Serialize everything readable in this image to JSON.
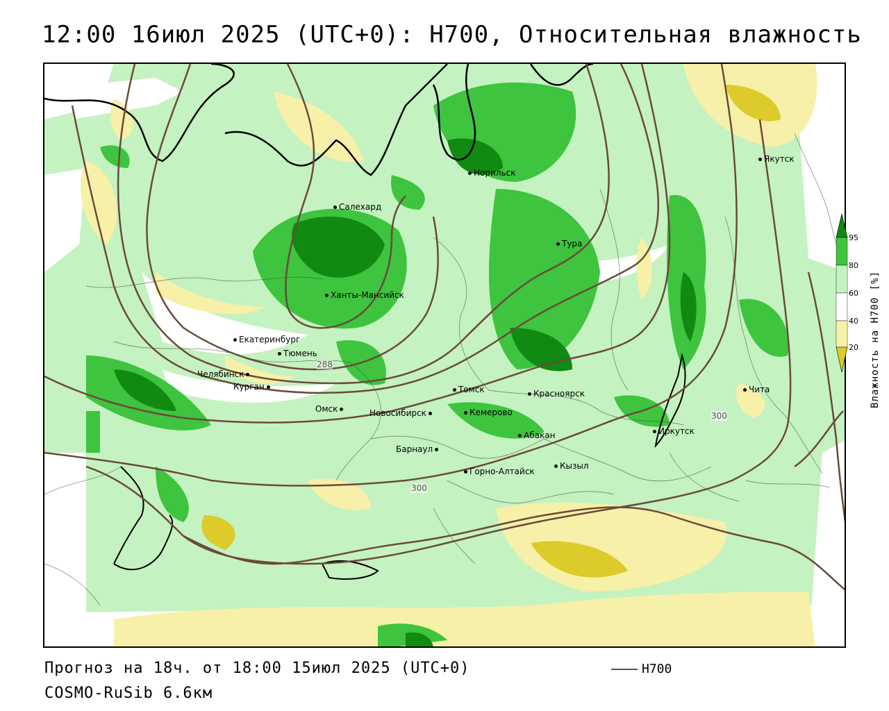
{
  "title": "12:00 16июл 2025 (UTC+0): H700, Относительная влажность",
  "footer": {
    "forecast": "Прогноз на 18ч. от 18:00 15июл 2025 (UTC+0)",
    "model": "COSMO-RuSib 6.6км"
  },
  "legend": {
    "line_label": "H700",
    "line_color": "#6b4a3a"
  },
  "colorbar": {
    "title": "Влажность на H700 [%]",
    "ticks": [
      "95",
      "80",
      "60",
      "40",
      "20"
    ],
    "colors": {
      "c95": "#118a11",
      "c80": "#3ec43e",
      "c60": "#c4f2c0",
      "c40": "#ffffff",
      "c20": "#f7f0a8",
      "low": "#dccb2a"
    }
  },
  "cities": [
    {
      "name": "Якутск",
      "key": "yakutsk"
    },
    {
      "name": "Норильск",
      "key": "norilsk"
    },
    {
      "name": "Салехард",
      "key": "salekhard"
    },
    {
      "name": "Тура",
      "key": "tura"
    },
    {
      "name": "Ханты-Мансийск",
      "key": "khanty"
    },
    {
      "name": "Екатеринбург",
      "key": "ekb"
    },
    {
      "name": "Тюмень",
      "key": "tyumen"
    },
    {
      "name": "Челябинск",
      "key": "chel"
    },
    {
      "name": "Курган",
      "key": "kurgan"
    },
    {
      "name": "Омск",
      "key": "omsk"
    },
    {
      "name": "Новосибирск",
      "key": "nsk"
    },
    {
      "name": "Томск",
      "key": "tomsk"
    },
    {
      "name": "Кемерово",
      "key": "kemerovo"
    },
    {
      "name": "Красноярск",
      "key": "krasnoyarsk"
    },
    {
      "name": "Абакан",
      "key": "abakan"
    },
    {
      "name": "Барнаул",
      "key": "barnaul"
    },
    {
      "name": "Горно-Алтайск",
      "key": "gorno"
    },
    {
      "name": "Кызыл",
      "key": "kyzyl"
    },
    {
      "name": "Иркутск",
      "key": "irkutsk"
    },
    {
      "name": "Чита",
      "key": "chita"
    }
  ],
  "contour_labels": [
    "288",
    "300",
    "300"
  ]
}
